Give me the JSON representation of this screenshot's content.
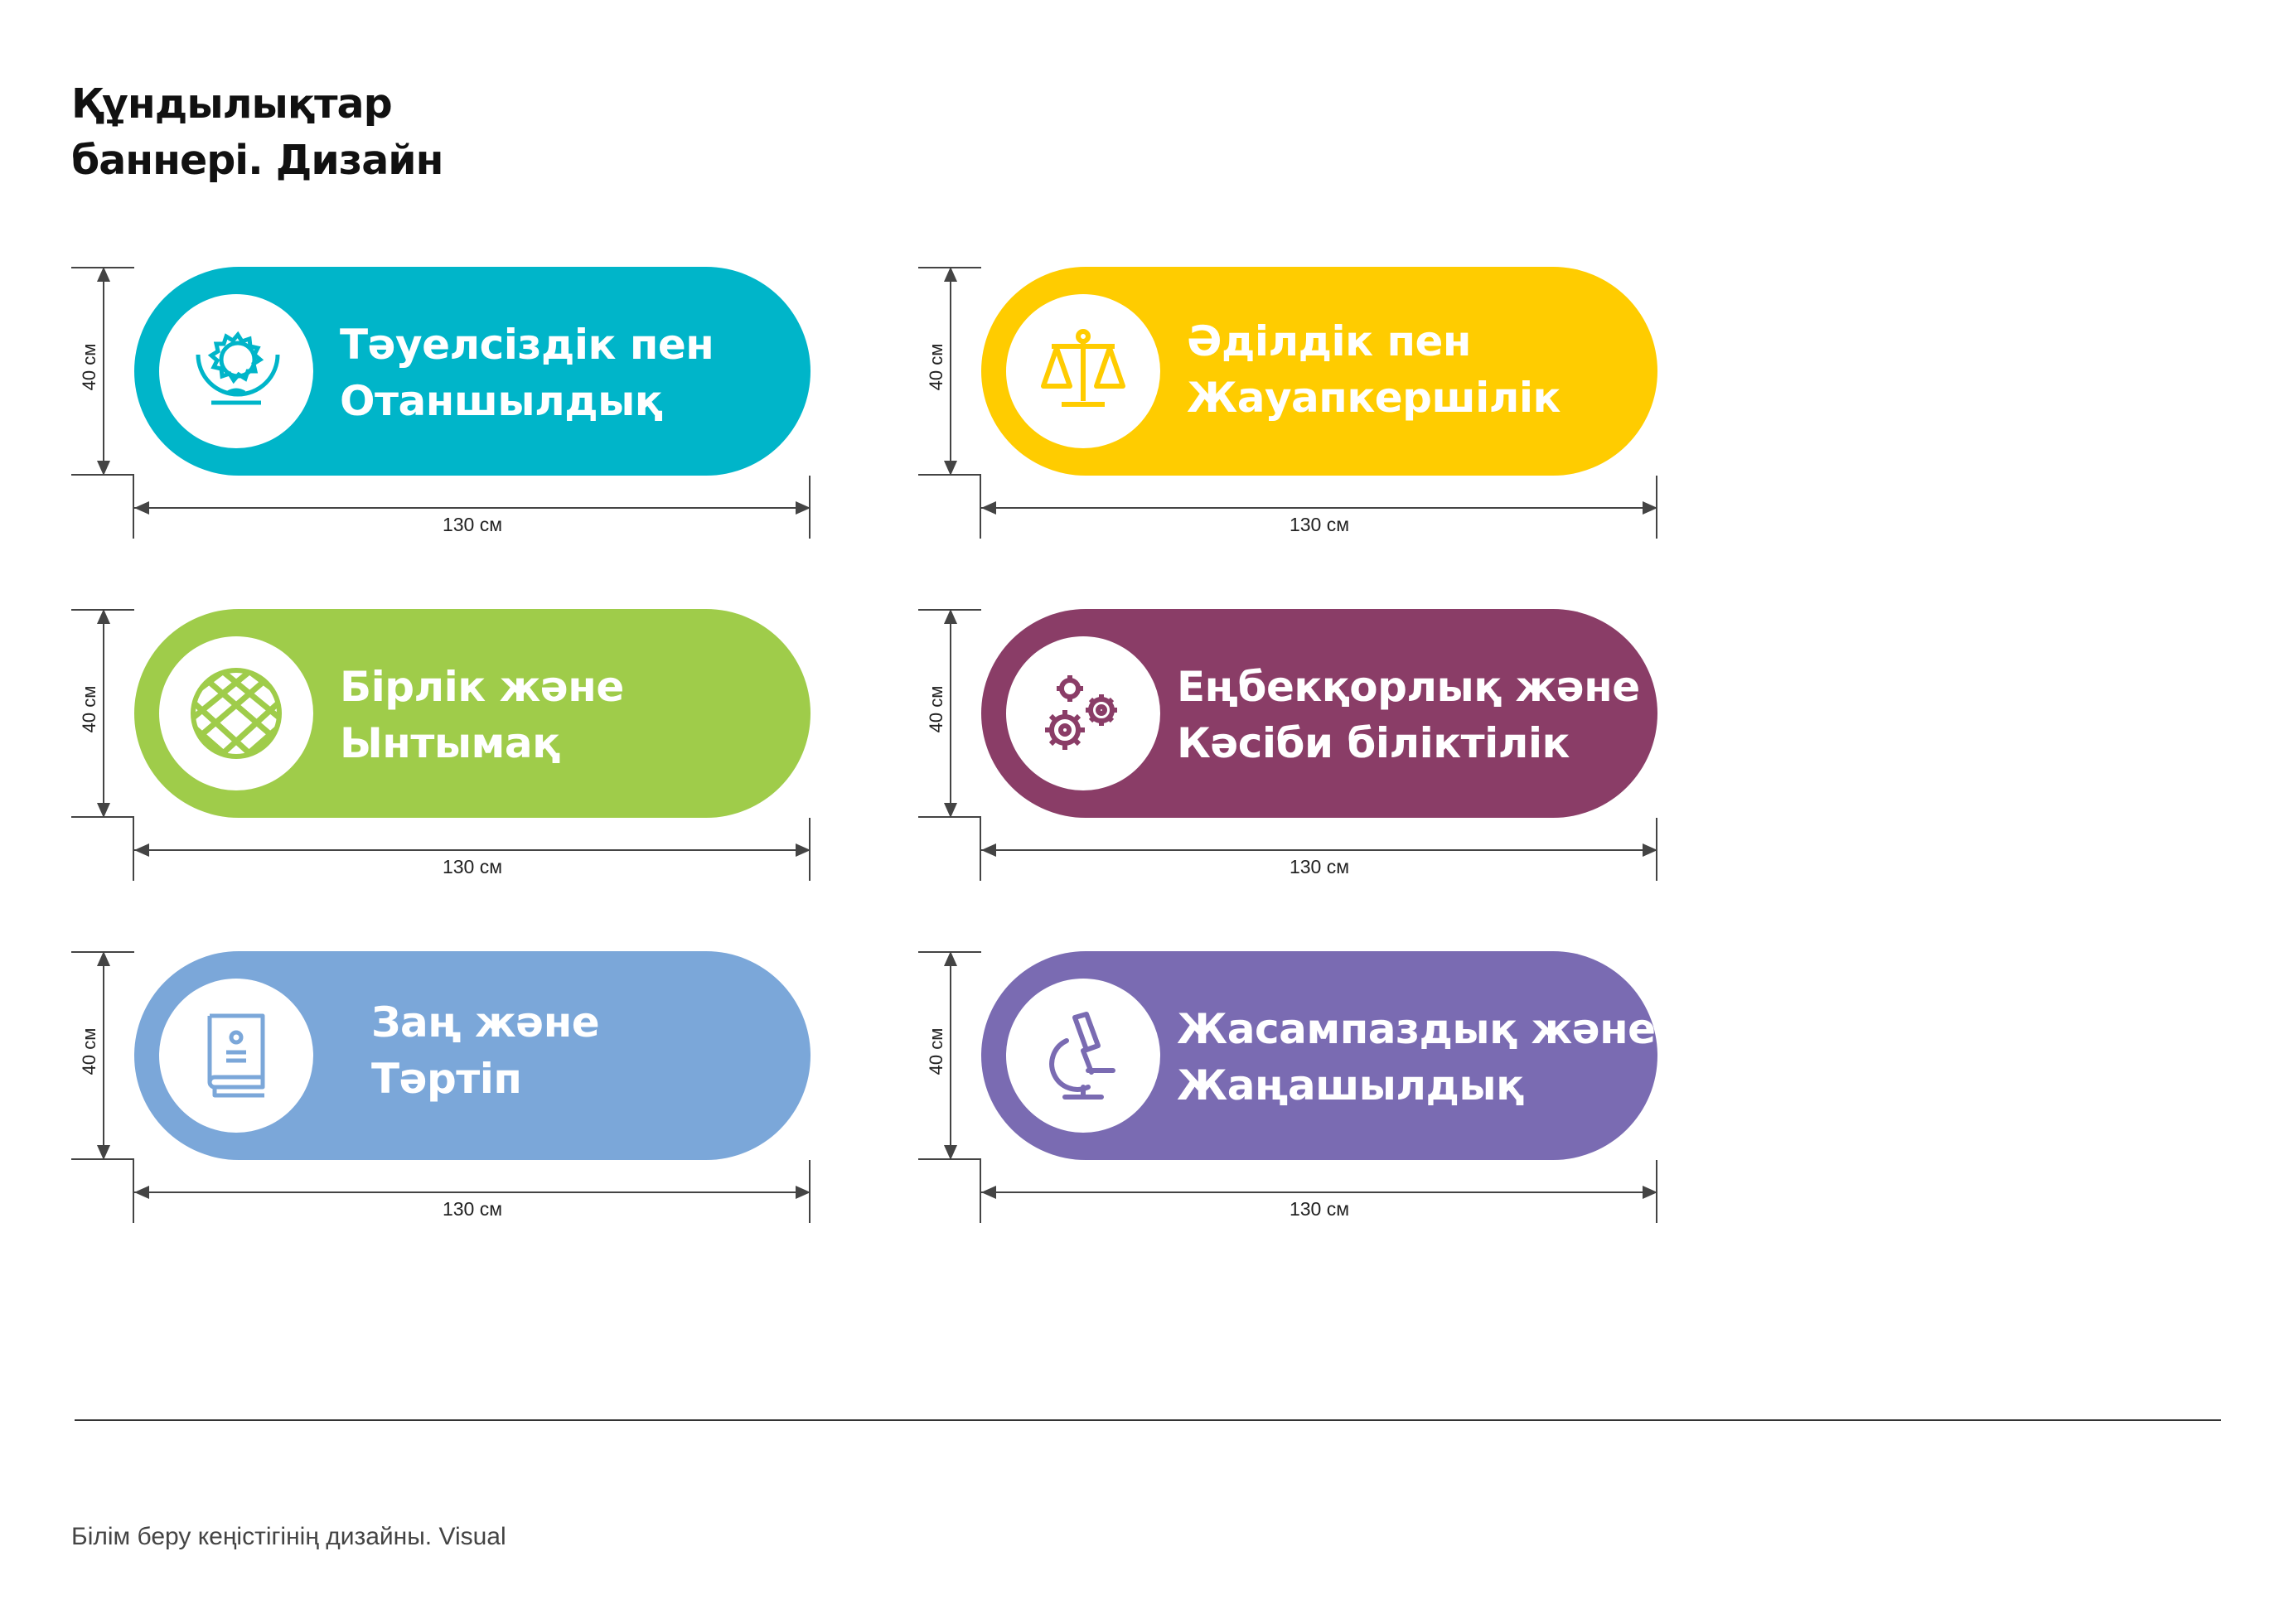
{
  "page": {
    "title_line1": "Құндылықтар",
    "title_line2": "баннері. Дизайн",
    "footer": "Білім беру кеңістігінің дизайны. Visual"
  },
  "dimensions": {
    "height_label": "40 см",
    "width_label": "130 см"
  },
  "banners": [
    {
      "line1": "Тәуелсіздік пен",
      "line2": "Отаншылдық",
      "color": "#00B5C9",
      "icon": "globe-sun-icon"
    },
    {
      "line1": "Әділдік пен",
      "line2": "Жауапкершілік",
      "color": "#FFCC00",
      "icon": "scales-icon"
    },
    {
      "line1": "Бірлік және",
      "line2": "Ынтымақ",
      "color": "#9FCC4A",
      "icon": "ornament-icon"
    },
    {
      "line1": "Еңбекқорлық және",
      "line2": "Кәсіби біліктілік",
      "color": "#8A3D67",
      "icon": "gears-icon"
    },
    {
      "line1": "Заң және",
      "line2": "Тәртіп",
      "color": "#7BA7D9",
      "icon": "book-icon"
    },
    {
      "line1": "Жасампаздық және",
      "line2": "Жаңашылдық",
      "color": "#7A6BB2",
      "icon": "microscope-icon"
    }
  ]
}
